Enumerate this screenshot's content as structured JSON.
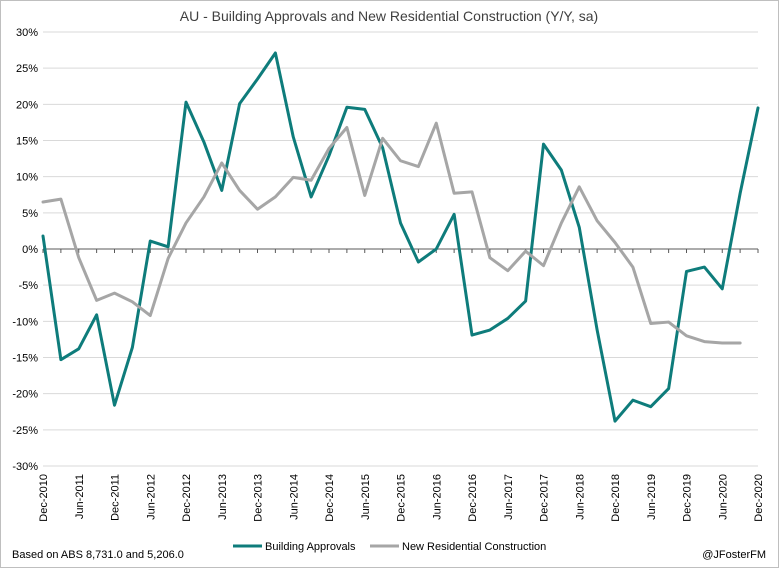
{
  "chart_data": {
    "type": "line",
    "title": "AU - Building Approvals and New Residential Construction (Y/Y, sa)",
    "xlabel": "",
    "ylabel": "",
    "ylim": [
      -30,
      30
    ],
    "ytick_values": [
      -30,
      -25,
      -20,
      -15,
      -10,
      -5,
      0,
      5,
      10,
      15,
      20,
      25,
      30
    ],
    "ytick_labels": [
      "-30%",
      "-25%",
      "-20%",
      "-15%",
      "-10%",
      "-5%",
      "0%",
      "5%",
      "10%",
      "15%",
      "20%",
      "25%",
      "30%"
    ],
    "x": [
      "Dec-2010",
      "Mar-2011",
      "Jun-2011",
      "Sep-2011",
      "Dec-2011",
      "Mar-2012",
      "Jun-2012",
      "Sep-2012",
      "Dec-2012",
      "Mar-2013",
      "Jun-2013",
      "Sep-2013",
      "Dec-2013",
      "Mar-2014",
      "Jun-2014",
      "Sep-2014",
      "Dec-2014",
      "Mar-2015",
      "Jun-2015",
      "Sep-2015",
      "Dec-2015",
      "Mar-2016",
      "Jun-2016",
      "Sep-2016",
      "Dec-2016",
      "Mar-2017",
      "Jun-2017",
      "Sep-2017",
      "Dec-2017",
      "Mar-2018",
      "Jun-2018",
      "Sep-2018",
      "Dec-2018",
      "Mar-2019",
      "Jun-2019",
      "Sep-2019",
      "Dec-2019",
      "Mar-2020",
      "Jun-2020",
      "Sep-2020",
      "Dec-2020"
    ],
    "xtick_labels": [
      "Dec-2010",
      "Jun-2011",
      "Dec-2011",
      "Jun-2012",
      "Dec-2012",
      "Jun-2013",
      "Dec-2013",
      "Jun-2014",
      "Dec-2014",
      "Jun-2015",
      "Dec-2015",
      "Jun-2016",
      "Dec-2016",
      "Jun-2017",
      "Dec-2017",
      "Jun-2018",
      "Dec-2018",
      "Jun-2019",
      "Dec-2019",
      "Jun-2020",
      "Dec-2020"
    ],
    "series": [
      {
        "name": "Building Approvals",
        "color": "#0e7c7b",
        "values": [
          1.8,
          -15.3,
          -13.8,
          -9.1,
          -21.6,
          -13.6,
          1.1,
          0.3,
          20.3,
          14.8,
          8.1,
          20.1,
          23.5,
          27.1,
          15.5,
          7.2,
          12.9,
          19.6,
          19.3,
          14.0,
          3.6,
          -1.8,
          0.0,
          4.8,
          -11.9,
          -11.2,
          -9.6,
          -7.2,
          14.5,
          10.9,
          3.0,
          -11.2,
          -23.8,
          -20.9,
          -21.8,
          -19.3,
          -3.1,
          -2.5,
          -5.5,
          7.7,
          19.5
        ]
      },
      {
        "name": "New Residential Construction",
        "color": "#a6a6a6",
        "values": [
          6.5,
          6.9,
          -1.2,
          -7.1,
          -6.1,
          -7.3,
          -9.2,
          -1.3,
          3.6,
          7.2,
          11.9,
          8.1,
          5.5,
          7.2,
          9.9,
          9.5,
          13.9,
          16.8,
          7.4,
          15.3,
          12.2,
          11.4,
          17.4,
          7.7,
          7.9,
          -1.2,
          -3.0,
          -0.3,
          -2.3,
          3.6,
          8.6,
          3.9,
          0.9,
          -2.5,
          -10.3,
          -10.1,
          -12.0,
          -12.8,
          -13.0,
          -13.0,
          null
        ]
      }
    ],
    "legend": [
      "Building Approvals",
      "New Residential Construction"
    ],
    "legend_position": "bottom",
    "grid": true,
    "footer_left": "Based on ABS 8,731.0 and 5,206.0",
    "footer_right": "@JFosterFM"
  }
}
